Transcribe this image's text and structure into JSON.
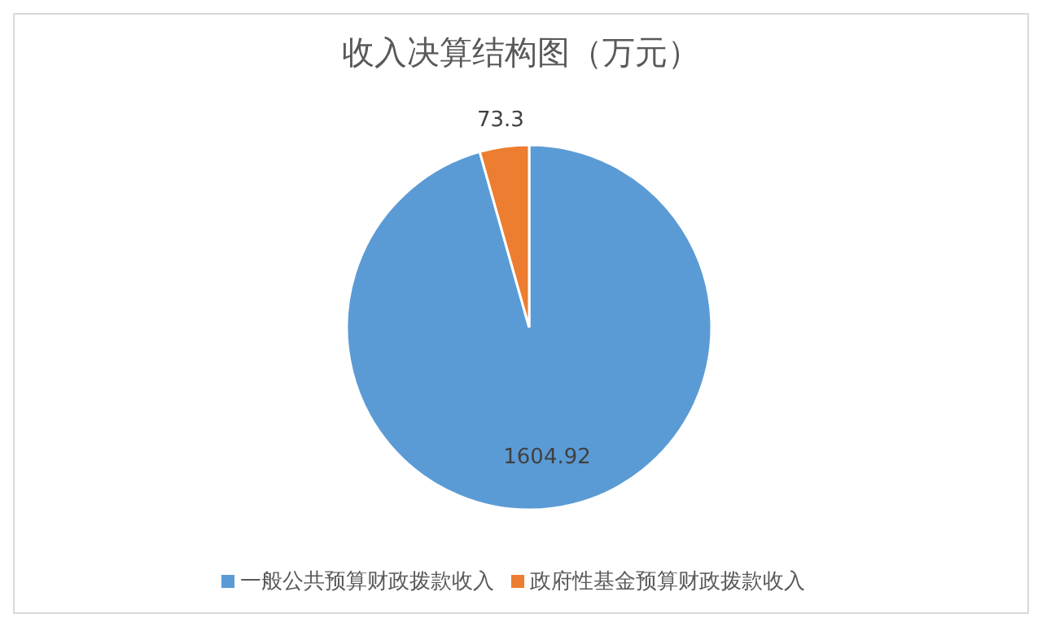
{
  "chart_data": {
    "type": "pie",
    "title": "收入决算结构图（万元）",
    "categories": [
      "一般公共预算财政拨款收入",
      "政府性基金预算财政拨款收入"
    ],
    "values": [
      1604.92,
      73.3
    ],
    "colors": [
      "#5b9bd5",
      "#ed7d31"
    ],
    "data_labels": true,
    "legend": "bottom"
  }
}
